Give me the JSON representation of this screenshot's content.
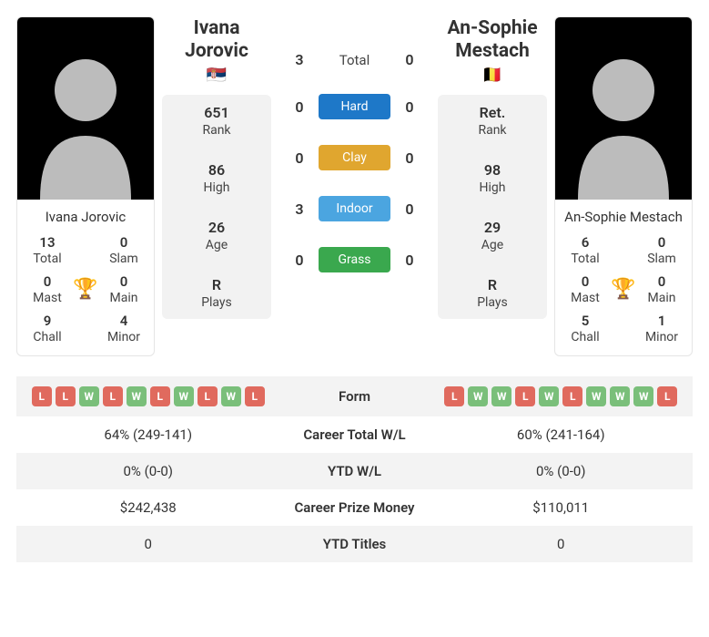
{
  "colors": {
    "hard": "#1e78c8",
    "clay": "#e0a62f",
    "indoor": "#4ba5e0",
    "grass": "#3aa84e",
    "win": "#7abf7a",
    "loss": "#e06a5e",
    "trophy": "#4a88d6"
  },
  "p1": {
    "name": "Ivana Jorovic",
    "flag": "🇷🇸",
    "rank": "651",
    "high": "86",
    "age": "26",
    "plays": "R",
    "titles": {
      "total": "13",
      "slam": "0",
      "mast": "0",
      "main": "0",
      "chall": "9",
      "minor": "4"
    }
  },
  "p2": {
    "name": "An-Sophie Mestach",
    "flag": "🇧🇪",
    "rank": "Ret.",
    "high": "98",
    "age": "29",
    "plays": "R",
    "titles": {
      "total": "6",
      "slam": "0",
      "mast": "0",
      "main": "0",
      "chall": "5",
      "minor": "1"
    }
  },
  "stat_labels": {
    "rank": "Rank",
    "high": "High",
    "age": "Age",
    "plays": "Plays"
  },
  "title_labels": {
    "total": "Total",
    "slam": "Slam",
    "mast": "Mast",
    "main": "Main",
    "chall": "Chall",
    "minor": "Minor"
  },
  "h2h": {
    "total_label": "Total",
    "total": {
      "p1": "3",
      "p2": "0"
    },
    "surfaces": [
      {
        "key": "hard",
        "label": "Hard",
        "p1": "0",
        "p2": "0"
      },
      {
        "key": "clay",
        "label": "Clay",
        "p1": "0",
        "p2": "0"
      },
      {
        "key": "indoor",
        "label": "Indoor",
        "p1": "3",
        "p2": "0"
      },
      {
        "key": "grass",
        "label": "Grass",
        "p1": "0",
        "p2": "0"
      }
    ]
  },
  "compare": {
    "rows": [
      {
        "label": "Form",
        "type": "form",
        "p1": [
          "L",
          "L",
          "W",
          "L",
          "W",
          "L",
          "W",
          "L",
          "W",
          "L"
        ],
        "p2": [
          "L",
          "W",
          "W",
          "L",
          "W",
          "L",
          "W",
          "W",
          "W",
          "L"
        ]
      },
      {
        "label": "Career Total W/L",
        "p1": "64% (249-141)",
        "p2": "60% (241-164)"
      },
      {
        "label": "YTD W/L",
        "p1": "0% (0-0)",
        "p2": "0% (0-0)"
      },
      {
        "label": "Career Prize Money",
        "p1": "$242,438",
        "p2": "$110,011"
      },
      {
        "label": "YTD Titles",
        "p1": "0",
        "p2": "0"
      }
    ]
  }
}
